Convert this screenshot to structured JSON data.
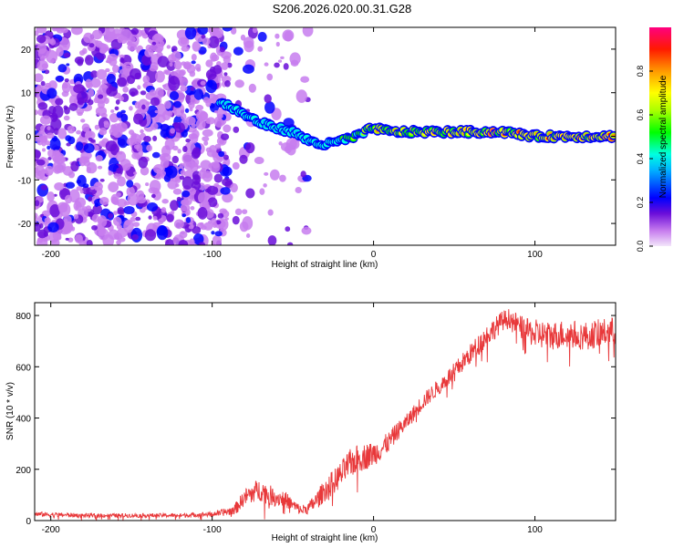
{
  "figure": {
    "title": "S206.2026.020.00.31.G28"
  },
  "colors": {
    "snr_line": "#e8383a",
    "axis": "#000000"
  },
  "chart_data": [
    {
      "type": "heatmap",
      "xlabel": "Height of straight line (km)",
      "ylabel": "Frequency (Hz)",
      "xlim": [
        -210,
        150
      ],
      "ylim": [
        -25,
        25
      ],
      "xticks": [
        -200,
        -100,
        0,
        100
      ],
      "yticks": [
        -20,
        -10,
        0,
        10,
        20
      ],
      "colorbar": {
        "label": "Normalized spectral amplitude",
        "range": [
          0,
          1
        ],
        "ticks": [
          "0.0",
          "0.2",
          "0.4",
          "0.6",
          "0.8"
        ],
        "colormap": [
          "#e8c6f5",
          "#8a2be2",
          "#0000ff",
          "#00ffff",
          "#00ff00",
          "#ffff00",
          "#ff8000",
          "#ff0000",
          "#ff0080"
        ]
      },
      "ridge": {
        "description_points_x": [
          -95,
          -80,
          -70,
          -60,
          -50,
          -40,
          -30,
          -20,
          -10,
          0,
          10,
          20,
          40,
          60,
          80,
          100,
          120,
          150
        ],
        "frequency": [
          8,
          5,
          3,
          2,
          1,
          -1,
          -2,
          -1,
          0,
          2,
          1,
          1,
          1,
          1,
          1,
          0,
          0,
          0
        ],
        "amplitude": [
          0.3,
          0.35,
          0.4,
          0.3,
          0.3,
          0.35,
          0.4,
          0.5,
          0.6,
          0.7,
          0.75,
          0.7,
          0.75,
          0.85,
          0.85,
          0.8,
          0.8,
          0.85
        ]
      },
      "noise_region_x": [
        -210,
        -40
      ]
    },
    {
      "type": "line",
      "xlabel": "Height of straight line (km)",
      "ylabel": "SNR (10 * v/v)",
      "xlim": [
        -210,
        150
      ],
      "ylim": [
        0,
        850
      ],
      "xticks": [
        -200,
        -100,
        0,
        100
      ],
      "yticks": [
        0,
        200,
        400,
        600,
        800
      ],
      "series": [
        {
          "name": "SNR",
          "x": [
            -210,
            -180,
            -150,
            -120,
            -100,
            -90,
            -85,
            -80,
            -75,
            -70,
            -65,
            -60,
            -55,
            -50,
            -45,
            -40,
            -35,
            -30,
            -25,
            -20,
            -15,
            -10,
            -5,
            0,
            5,
            10,
            15,
            20,
            25,
            30,
            40,
            50,
            60,
            70,
            80,
            85,
            90,
            95,
            100,
            110,
            120,
            130,
            140,
            150
          ],
          "y": [
            25,
            20,
            20,
            20,
            25,
            35,
            50,
            90,
            110,
            120,
            100,
            90,
            85,
            60,
            40,
            50,
            80,
            120,
            150,
            180,
            220,
            240,
            250,
            260,
            280,
            310,
            350,
            380,
            420,
            460,
            520,
            580,
            650,
            720,
            780,
            790,
            760,
            740,
            730,
            720,
            730,
            720,
            730,
            740
          ],
          "spread": [
            12,
            10,
            10,
            10,
            12,
            20,
            30,
            40,
            50,
            55,
            50,
            45,
            40,
            30,
            25,
            30,
            45,
            55,
            60,
            65,
            70,
            70,
            65,
            60,
            55,
            50,
            45,
            40,
            40,
            40,
            40,
            45,
            50,
            55,
            50,
            50,
            55,
            60,
            70,
            70,
            70,
            70,
            70,
            70
          ]
        }
      ]
    }
  ]
}
